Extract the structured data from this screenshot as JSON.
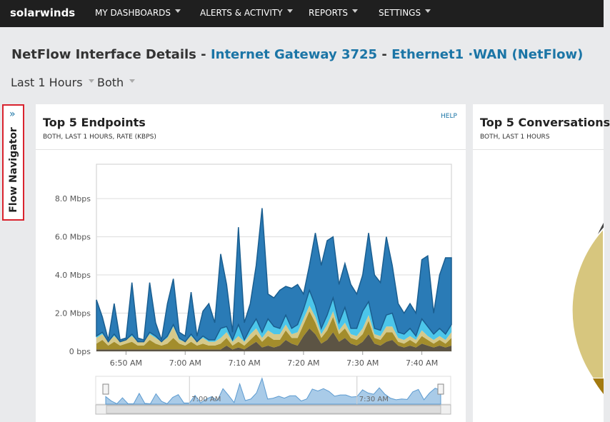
{
  "nav": {
    "brand": "solarwinds",
    "menu": [
      "MY DASHBOARDS",
      "ALERTS & ACTIVITY",
      "REPORTS",
      "SETTINGS"
    ]
  },
  "header": {
    "title": "NetFlow Interface Details",
    "separator": "-",
    "node": "Internet Gateway 3725",
    "interface": "Ethernet1 ·WAN (NetFlow)"
  },
  "filters": [
    "Last 1 Hours",
    "Both"
  ],
  "sidebar": "Flow Navigator",
  "panels": [
    {
      "title": "Top 5 Endpoints",
      "subtitle": "BOTH, LAST 1 HOURS, RATE (KBPS)",
      "help": "HELP"
    },
    {
      "title": "Top 5 Conversations",
      "subtitle": "BOTH, LAST 1 HOURS"
    }
  ],
  "chart_data": {
    "type": "stacked_area",
    "categories": [
      null,
      null,
      null,
      null,
      null,
      "6:50 AM",
      null,
      null,
      null,
      null,
      null,
      null,
      null,
      null,
      null,
      "7:00 AM",
      null,
      null,
      null,
      null,
      null,
      null,
      null,
      null,
      null,
      "7:10 AM",
      null,
      null,
      null,
      null,
      null,
      null,
      null,
      null,
      null,
      "7:20 AM",
      null,
      null,
      null,
      null,
      null,
      null,
      null,
      null,
      null,
      "7:30 AM",
      null,
      null,
      null,
      null,
      null,
      null,
      null,
      null,
      null,
      "7:40 AM",
      null,
      null,
      null,
      null,
      null
    ],
    "series": [
      {
        "color": "#5c5444",
        "values": [
          0.1,
          0.1,
          0.1,
          0.1,
          0.1,
          0.1,
          0.1,
          0.1,
          0.1,
          0.1,
          0.1,
          0.1,
          0.1,
          0.1,
          0.1,
          0.1,
          0.1,
          0.1,
          0.1,
          0.1,
          0.1,
          0.1,
          0.3,
          0.1,
          0.2,
          0.1,
          0.3,
          0.5,
          0.2,
          0.3,
          0.2,
          0.3,
          0.6,
          0.4,
          0.3,
          0.8,
          1.2,
          0.9,
          0.4,
          0.6,
          1.0,
          0.5,
          0.7,
          0.4,
          0.3,
          0.5,
          0.9,
          0.4,
          0.3,
          0.5,
          0.6,
          0.3,
          0.2,
          0.3,
          0.2,
          0.4,
          0.3,
          0.2,
          0.3,
          0.2,
          0.3
        ]
      },
      {
        "color": "#a38d2c",
        "values": [
          0.3,
          0.5,
          0.2,
          0.4,
          0.2,
          0.3,
          0.4,
          0.2,
          0.2,
          0.5,
          0.3,
          0.2,
          0.3,
          0.6,
          0.3,
          0.2,
          0.4,
          0.2,
          0.3,
          0.2,
          0.2,
          0.3,
          0.4,
          0.2,
          0.3,
          0.2,
          0.3,
          0.4,
          0.3,
          0.5,
          0.4,
          0.3,
          0.5,
          0.3,
          0.4,
          0.6,
          0.9,
          0.6,
          0.3,
          0.5,
          0.8,
          0.4,
          0.5,
          0.3,
          0.3,
          0.4,
          0.7,
          0.3,
          0.3,
          0.5,
          0.4,
          0.2,
          0.2,
          0.3,
          0.2,
          0.4,
          0.3,
          0.2,
          0.3,
          0.2,
          0.4
        ]
      },
      {
        "color": "#d5c98a",
        "values": [
          0.3,
          0.3,
          0.2,
          0.3,
          0.2,
          0.2,
          0.3,
          0.2,
          0.2,
          0.3,
          0.3,
          0.2,
          0.3,
          0.6,
          0.2,
          0.2,
          0.3,
          0.2,
          0.3,
          0.2,
          0.2,
          0.3,
          0.3,
          0.2,
          0.3,
          0.2,
          0.3,
          0.3,
          0.2,
          0.3,
          0.3,
          0.3,
          0.3,
          0.2,
          0.3,
          0.3,
          0.3,
          0.3,
          0.2,
          0.3,
          0.3,
          0.2,
          0.3,
          0.2,
          0.2,
          0.3,
          0.3,
          0.2,
          0.2,
          0.3,
          0.3,
          0.2,
          0.2,
          0.2,
          0.2,
          0.3,
          0.2,
          0.2,
          0.2,
          0.2,
          0.3
        ]
      },
      {
        "color": "#4cc6ea",
        "values": [
          0.1,
          0.1,
          0.0,
          0.1,
          0.0,
          0.0,
          0.1,
          0.0,
          0.0,
          0.1,
          0.1,
          0.0,
          0.1,
          0.1,
          0.1,
          0.0,
          0.1,
          0.0,
          0.1,
          0.1,
          0.1,
          0.5,
          0.3,
          0.1,
          0.6,
          0.1,
          0.3,
          0.5,
          0.3,
          0.6,
          0.4,
          0.3,
          0.5,
          0.3,
          0.4,
          0.5,
          0.8,
          0.6,
          0.3,
          0.5,
          0.7,
          0.4,
          0.8,
          0.3,
          0.4,
          0.9,
          0.7,
          0.3,
          0.3,
          0.6,
          0.7,
          0.3,
          0.3,
          0.4,
          0.2,
          0.6,
          0.5,
          0.3,
          0.4,
          0.3,
          0.4
        ]
      },
      {
        "color": "#2a7bb6",
        "values": [
          1.9,
          0.8,
          0.1,
          1.6,
          0.1,
          0.1,
          2.7,
          0.2,
          0.1,
          2.6,
          0.7,
          0.1,
          1.7,
          2.4,
          0.3,
          0.3,
          2.2,
          0.3,
          1.3,
          1.9,
          0.9,
          3.9,
          2.2,
          0.4,
          5.1,
          0.9,
          1.3,
          2.8,
          6.5,
          1.3,
          1.5,
          2.0,
          1.5,
          2.1,
          2.1,
          0.8,
          1.3,
          3.8,
          3.3,
          3.9,
          3.2,
          2.0,
          2.3,
          2.3,
          1.8,
          1.9,
          3.6,
          2.8,
          2.5,
          4.1,
          2.5,
          1.5,
          1.1,
          1.3,
          1.2,
          3.1,
          3.7,
          1.1,
          2.8,
          4.0,
          3.5
        ]
      }
    ],
    "ylim": [
      0,
      9.8
    ],
    "yticks": [
      {
        "value": 0,
        "label": "0 bps"
      },
      {
        "value": 2,
        "label": "2.0 Mbps"
      },
      {
        "value": 4,
        "label": "4.0 Mbps"
      },
      {
        "value": 6,
        "label": "6.0 Mbps"
      },
      {
        "value": 8,
        "label": "8.0 Mbps"
      }
    ],
    "grid": true
  }
}
